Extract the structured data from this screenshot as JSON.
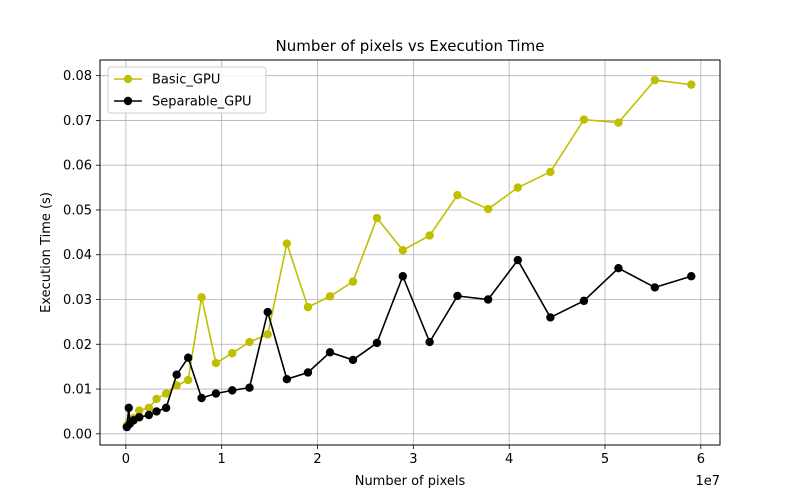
{
  "chart_data": {
    "type": "line",
    "title": "Number of pixels vs Execution Time",
    "xlabel": "Number of pixels",
    "ylabel": "Execution Time (s)",
    "x_offset_label": "1e7",
    "xlim": [
      -2700000,
      62000000
    ],
    "ylim": [
      -0.0025,
      0.0835
    ],
    "x_ticks": [
      0,
      10000000,
      20000000,
      30000000,
      40000000,
      50000000,
      60000000
    ],
    "x_tick_labels": [
      "0",
      "1",
      "2",
      "3",
      "4",
      "5",
      "6"
    ],
    "y_ticks": [
      0.0,
      0.01,
      0.02,
      0.03,
      0.04,
      0.05,
      0.06,
      0.07,
      0.08
    ],
    "y_tick_labels": [
      "0.00",
      "0.01",
      "0.02",
      "0.03",
      "0.04",
      "0.05",
      "0.06",
      "0.07",
      "0.08"
    ],
    "grid": true,
    "legend_position": "top-left",
    "series": [
      {
        "name": "Basic_GPU",
        "color": "#bfbf00",
        "x": [
          100000,
          300000,
          800000,
          1400000,
          2400000,
          3200000,
          4200000,
          5300000,
          6500000,
          7900000,
          9400000,
          11100000,
          12900000,
          14800000,
          16800000,
          19000000,
          21300000,
          23700000,
          26200000,
          28900000,
          31700000,
          34600000,
          37800000,
          40900000,
          44300000,
          47800000,
          51400000,
          55200000,
          59000000
        ],
        "y": [
          0.0018,
          0.0025,
          0.0035,
          0.0052,
          0.0058,
          0.0078,
          0.009,
          0.0108,
          0.012,
          0.0305,
          0.0158,
          0.018,
          0.0205,
          0.0222,
          0.0425,
          0.0283,
          0.0307,
          0.034,
          0.0482,
          0.041,
          0.0443,
          0.0533,
          0.0502,
          0.055,
          0.0585,
          0.0702,
          0.0695,
          0.079,
          0.078
        ]
      },
      {
        "name": "Separable_GPU",
        "color": "#000000",
        "x": [
          100000,
          300000,
          400000,
          800000,
          1400000,
          2400000,
          3200000,
          4200000,
          5300000,
          6500000,
          7900000,
          9400000,
          11100000,
          12900000,
          14800000,
          16800000,
          19000000,
          21300000,
          23700000,
          26200000,
          28900000,
          31700000,
          34600000,
          37800000,
          40900000,
          44300000,
          47800000,
          51400000,
          55200000,
          59000000
        ],
        "y": [
          0.0015,
          0.0058,
          0.0022,
          0.003,
          0.0037,
          0.0042,
          0.005,
          0.0058,
          0.0132,
          0.017,
          0.008,
          0.009,
          0.0097,
          0.0103,
          0.0272,
          0.0122,
          0.0137,
          0.0182,
          0.0165,
          0.0203,
          0.0352,
          0.0205,
          0.0308,
          0.03,
          0.0388,
          0.026,
          0.0297,
          0.037,
          0.0327,
          0.0352
        ]
      }
    ]
  }
}
